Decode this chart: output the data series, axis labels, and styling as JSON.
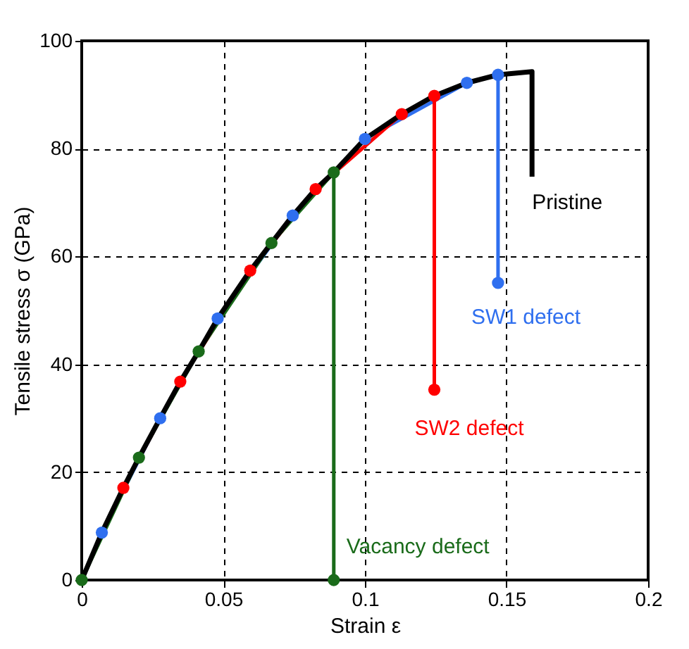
{
  "chart_data": {
    "type": "line",
    "xlabel": "Strain ε",
    "ylabel": "Tensile stress σ (GPa)",
    "xlim": [
      0,
      0.2
    ],
    "ylim": [
      0,
      100
    ],
    "xticks": [
      0,
      0.05,
      0.1,
      0.15,
      0.2
    ],
    "yticks": [
      0,
      20,
      40,
      60,
      80,
      100
    ],
    "grid": true,
    "legend": false,
    "marker": "circle",
    "series": [
      {
        "name": "Pristine",
        "color": "#000000",
        "marker": "none",
        "x": [
          0,
          0.0071,
          0.0147,
          0.0202,
          0.0277,
          0.0348,
          0.0413,
          0.048,
          0.0595,
          0.067,
          0.0745,
          0.0826,
          0.089,
          0.1,
          0.113,
          0.1245,
          0.136,
          0.147,
          0.159,
          0.159
        ],
        "values": [
          0,
          8.8,
          17.1,
          22.7,
          30.0,
          36.8,
          42.4,
          48.5,
          57.4,
          62.5,
          67.6,
          72.5,
          75.6,
          81.8,
          86.4,
          89.8,
          92.2,
          93.7,
          94.3,
          74.8
        ]
      },
      {
        "name": "SW1 defect",
        "color": "#2f6fef",
        "x": [
          0.0071,
          0.0277,
          0.048,
          0.0745,
          0.1,
          0.136,
          0.147,
          0.147
        ],
        "values": [
          8.8,
          30.0,
          48.5,
          67.6,
          81.8,
          92.2,
          93.7,
          55.1
        ]
      },
      {
        "name": "SW2 defect",
        "color": "#ff0000",
        "x": [
          0.0147,
          0.0348,
          0.0595,
          0.0826,
          0.113,
          0.1245,
          0.1245
        ],
        "values": [
          17.1,
          36.8,
          57.4,
          72.5,
          86.4,
          89.8,
          35.3
        ]
      },
      {
        "name": "Vacancy defect",
        "color": "#1a6b1a",
        "x": [
          0,
          0.0202,
          0.0413,
          0.067,
          0.089,
          0.089
        ],
        "values": [
          0,
          22.7,
          42.4,
          62.5,
          75.6,
          0
        ]
      }
    ]
  }
}
